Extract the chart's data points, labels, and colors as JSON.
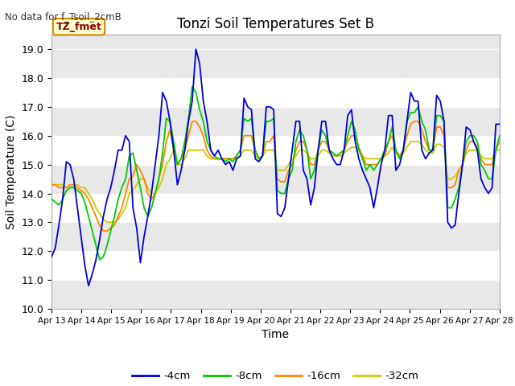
{
  "title": "Tonzi Soil Temperatures Set B",
  "xlabel": "Time",
  "ylabel": "Soil Temperature (C)",
  "note": "No data for f_Tsoil_2cmB",
  "tz_label": "TZ_fmet",
  "ylim": [
    10.0,
    19.5
  ],
  "yticks": [
    10.0,
    11.0,
    12.0,
    13.0,
    14.0,
    15.0,
    16.0,
    17.0,
    18.0,
    19.0
  ],
  "colors": {
    "4cm": "#0000dd",
    "8cm": "#00cc00",
    "16cm": "#ff8800",
    "32cm": "#cccc00"
  },
  "legend_labels": [
    "-4cm",
    "-8cm",
    "-16cm",
    "-32cm"
  ],
  "x_tick_labels": [
    "Apr 13",
    "Apr 14",
    "Apr 15",
    "Apr 16",
    "Apr 17",
    "Apr 18",
    "Apr 19",
    "Apr 20",
    "Apr 21",
    "Apr 22",
    "Apr 23",
    "Apr 24",
    "Apr 25",
    "Apr 26",
    "Apr 27",
    "Apr 28"
  ],
  "series_4cm": [
    11.8,
    12.1,
    12.9,
    13.8,
    15.1,
    15.0,
    14.5,
    13.5,
    12.5,
    11.5,
    10.8,
    11.2,
    11.7,
    12.4,
    13.2,
    13.8,
    14.2,
    14.8,
    15.5,
    15.5,
    16.0,
    15.8,
    13.5,
    12.8,
    11.6,
    12.5,
    13.2,
    14.0,
    15.0,
    16.0,
    17.5,
    17.2,
    16.5,
    15.5,
    14.3,
    14.8,
    15.5,
    16.5,
    17.2,
    19.0,
    18.5,
    17.2,
    16.5,
    15.5,
    15.3,
    15.5,
    15.2,
    15.0,
    15.1,
    14.8,
    15.2,
    15.3,
    17.3,
    17.0,
    16.9,
    15.2,
    15.1,
    15.3,
    17.0,
    17.0,
    16.9,
    13.3,
    13.2,
    13.5,
    14.5,
    15.5,
    16.5,
    16.5,
    14.8,
    14.5,
    13.6,
    14.2,
    15.5,
    16.5,
    16.5,
    15.5,
    15.2,
    15.0,
    15.0,
    15.5,
    16.7,
    16.9,
    15.8,
    15.2,
    14.8,
    14.5,
    14.2,
    13.5,
    14.2,
    15.0,
    15.5,
    16.7,
    16.7,
    14.8,
    15.0,
    15.5,
    16.5,
    17.5,
    17.2,
    17.2,
    15.5,
    15.2,
    15.4,
    15.5,
    17.4,
    17.2,
    16.5,
    13.0,
    12.8,
    12.9,
    14.0,
    15.0,
    16.3,
    16.2,
    15.8,
    15.5,
    14.5,
    14.2,
    14.0,
    14.2,
    16.4,
    16.4
  ],
  "series_8cm": [
    13.8,
    13.7,
    13.6,
    13.8,
    14.1,
    14.2,
    14.2,
    14.1,
    14.0,
    13.7,
    13.2,
    12.7,
    12.2,
    11.7,
    11.8,
    12.2,
    12.7,
    13.2,
    13.8,
    14.2,
    14.5,
    15.3,
    15.4,
    14.8,
    14.2,
    13.5,
    13.2,
    13.5,
    14.0,
    14.5,
    15.4,
    16.6,
    16.5,
    15.8,
    15.0,
    15.2,
    15.8,
    16.6,
    17.7,
    17.5,
    16.9,
    16.5,
    15.8,
    15.5,
    15.3,
    15.2,
    15.2,
    15.1,
    15.2,
    15.1,
    15.3,
    15.5,
    16.6,
    16.5,
    16.6,
    15.5,
    15.2,
    15.3,
    16.5,
    16.5,
    16.6,
    14.1,
    14.0,
    14.0,
    14.5,
    14.8,
    15.8,
    16.2,
    16.0,
    15.5,
    14.5,
    14.8,
    15.5,
    16.2,
    16.0,
    15.5,
    15.4,
    15.3,
    15.4,
    15.5,
    16.0,
    16.5,
    16.2,
    15.5,
    15.2,
    14.8,
    15.0,
    14.8,
    15.0,
    15.2,
    15.5,
    15.8,
    16.3,
    15.5,
    15.2,
    15.5,
    16.5,
    16.8,
    16.8,
    17.0,
    16.5,
    16.2,
    15.5,
    15.5,
    16.7,
    16.7,
    16.5,
    13.5,
    13.5,
    13.8,
    14.2,
    15.0,
    15.8,
    16.0,
    16.0,
    15.8,
    15.0,
    14.8,
    14.5,
    14.5,
    15.5,
    16.0
  ],
  "series_16cm": [
    14.3,
    14.3,
    14.2,
    14.2,
    14.2,
    14.3,
    14.3,
    14.2,
    14.1,
    14.0,
    13.8,
    13.5,
    13.2,
    12.9,
    12.7,
    12.7,
    12.8,
    12.9,
    13.2,
    13.5,
    14.0,
    14.5,
    14.6,
    15.0,
    14.8,
    14.5,
    14.0,
    13.8,
    14.0,
    14.5,
    15.0,
    15.8,
    16.2,
    15.5,
    15.0,
    15.2,
    15.5,
    16.0,
    16.5,
    16.5,
    16.3,
    16.0,
    15.5,
    15.3,
    15.2,
    15.2,
    15.2,
    15.2,
    15.2,
    15.2,
    15.3,
    15.5,
    16.0,
    16.0,
    16.0,
    15.5,
    15.2,
    15.3,
    15.8,
    15.8,
    16.0,
    14.5,
    14.4,
    14.4,
    14.8,
    15.0,
    15.5,
    15.8,
    15.8,
    15.5,
    15.0,
    15.0,
    15.5,
    15.8,
    15.8,
    15.5,
    15.4,
    15.3,
    15.4,
    15.5,
    15.8,
    16.0,
    16.0,
    15.6,
    15.3,
    15.0,
    15.0,
    15.0,
    15.0,
    15.2,
    15.3,
    15.8,
    16.0,
    15.5,
    15.3,
    15.5,
    16.0,
    16.4,
    16.5,
    16.5,
    16.2,
    15.8,
    15.5,
    15.5,
    16.3,
    16.3,
    16.0,
    14.2,
    14.2,
    14.3,
    14.8,
    15.0,
    15.5,
    15.8,
    15.8,
    15.6,
    15.2,
    15.0,
    15.0,
    15.0,
    15.5,
    15.8
  ],
  "series_32cm": [
    14.3,
    14.3,
    14.3,
    14.3,
    14.2,
    14.2,
    14.3,
    14.3,
    14.2,
    14.2,
    14.0,
    13.8,
    13.5,
    13.3,
    13.1,
    13.0,
    13.0,
    13.0,
    13.1,
    13.3,
    13.5,
    14.0,
    14.1,
    14.3,
    14.5,
    14.5,
    14.2,
    14.0,
    14.0,
    14.2,
    14.5,
    15.0,
    15.2,
    15.5,
    15.0,
    15.0,
    15.2,
    15.5,
    15.5,
    15.5,
    15.5,
    15.5,
    15.3,
    15.2,
    15.2,
    15.2,
    15.2,
    15.2,
    15.2,
    15.2,
    15.2,
    15.3,
    15.5,
    15.5,
    15.5,
    15.3,
    15.2,
    15.3,
    15.5,
    15.5,
    15.5,
    14.8,
    14.8,
    14.8,
    15.0,
    15.2,
    15.3,
    15.5,
    15.5,
    15.4,
    15.2,
    15.2,
    15.3,
    15.5,
    15.5,
    15.4,
    15.3,
    15.3,
    15.3,
    15.4,
    15.5,
    15.6,
    15.6,
    15.5,
    15.3,
    15.2,
    15.2,
    15.2,
    15.2,
    15.2,
    15.3,
    15.4,
    15.6,
    15.4,
    15.3,
    15.4,
    15.6,
    15.8,
    15.8,
    15.8,
    15.7,
    15.5,
    15.4,
    15.4,
    15.7,
    15.7,
    15.6,
    14.5,
    14.5,
    14.6,
    14.8,
    15.0,
    15.4,
    15.5,
    15.5,
    15.5,
    15.3,
    15.2,
    15.2,
    15.2,
    15.5,
    15.5
  ]
}
